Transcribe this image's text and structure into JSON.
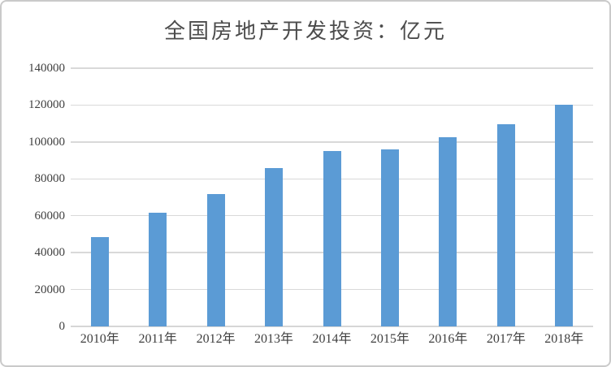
{
  "chart_data": {
    "type": "bar",
    "title": "全国房地产开发投资：亿元",
    "categories": [
      "2010年",
      "2011年",
      "2012年",
      "2013年",
      "2014年",
      "2015年",
      "2016年",
      "2017年",
      "2018年"
    ],
    "values": [
      48267,
      61797,
      71804,
      86013,
      95036,
      95979,
      102581,
      109799,
      120264
    ],
    "xlabel": "",
    "ylabel": "",
    "ylim": [
      0,
      140000
    ],
    "ytick_interval": 20000,
    "yticks": [
      0,
      20000,
      40000,
      60000,
      80000,
      100000,
      120000,
      140000
    ],
    "grid": true,
    "legend_position": "none",
    "colors": {
      "bar_fill": "#5B9BD5",
      "gridline": "#D9D9D9",
      "axis_line": "#D6D6D6",
      "tick_label": "#404040",
      "title": "#4C4C4C",
      "frame_border": "#CACACA",
      "background": "#FFFFFF"
    }
  }
}
